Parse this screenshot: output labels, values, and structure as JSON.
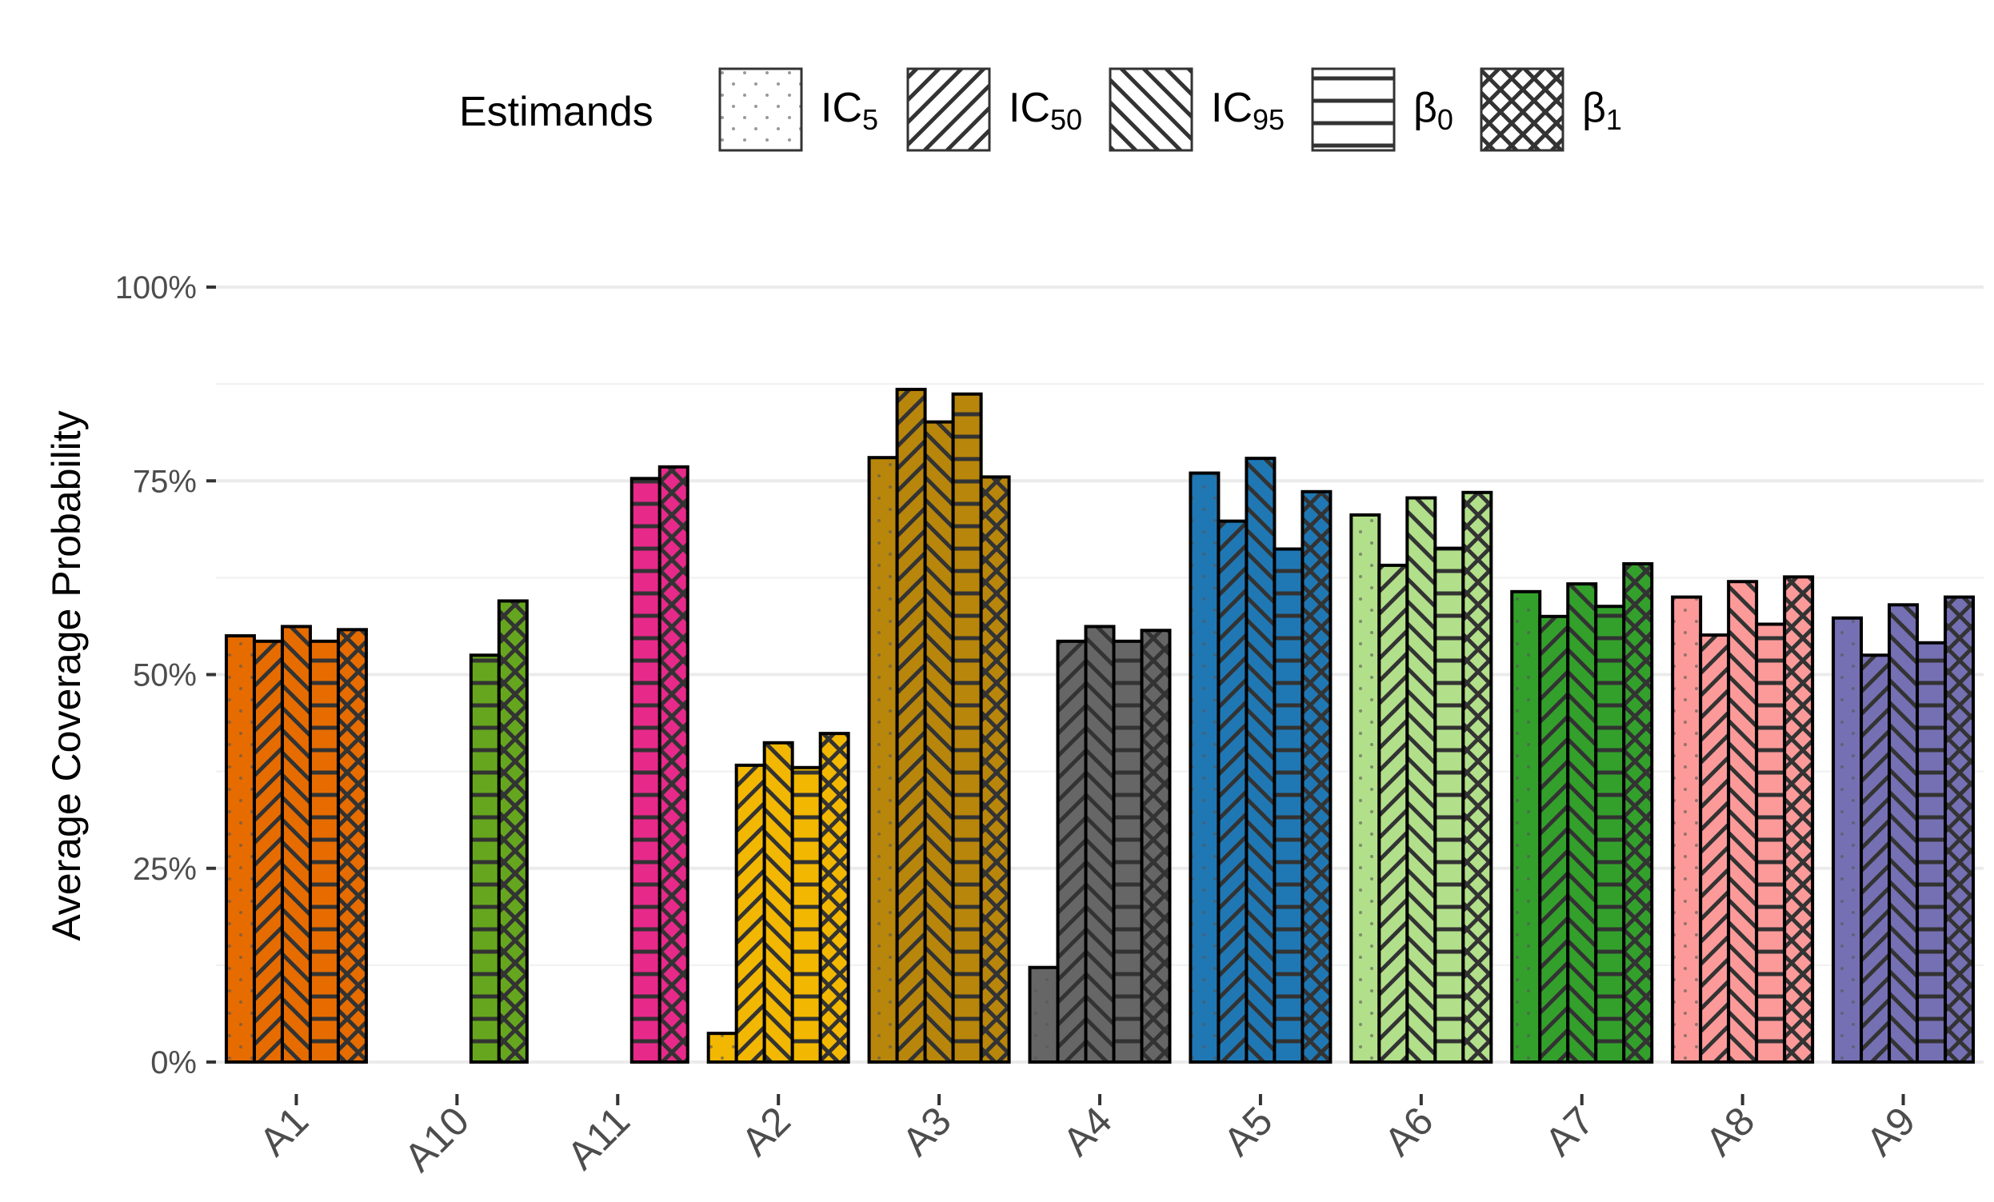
{
  "chart_data": {
    "type": "bar",
    "ylabel": "Average Coverage Probability",
    "xlabel": "",
    "ylim": [
      0,
      1
    ],
    "yticks": [
      "0%",
      "25%",
      "50%",
      "75%",
      "100%"
    ],
    "grid": true,
    "legend_position": "top",
    "legend_title": "Estimands",
    "categories": [
      "A1",
      "A10",
      "A11",
      "A2",
      "A3",
      "A4",
      "A5",
      "A6",
      "A7",
      "A8",
      "A9"
    ],
    "category_colors": [
      "#E66C00",
      "#66A61E",
      "#E7298A",
      "#F2B701",
      "#B8860B",
      "#666666",
      "#1F78B4",
      "#B2DF8A",
      "#33A02C",
      "#FB9A99",
      "#7570B3"
    ],
    "series": [
      {
        "name": "IC5",
        "name_main": "IC",
        "name_sub": "5",
        "pattern": "dots",
        "values": [
          0.55,
          0.0,
          0.0,
          0.037,
          0.78,
          0.122,
          0.76,
          0.706,
          0.607,
          0.6,
          0.573
        ]
      },
      {
        "name": "IC50",
        "name_main": "IC",
        "name_sub": "50",
        "pattern": "diag-forward",
        "values": [
          0.543,
          0.0,
          0.0,
          0.383,
          0.868,
          0.543,
          0.698,
          0.641,
          0.575,
          0.551,
          0.525
        ]
      },
      {
        "name": "IC95",
        "name_main": "IC",
        "name_sub": "95",
        "pattern": "diag-back",
        "values": [
          0.562,
          0.0,
          0.0,
          0.412,
          0.826,
          0.562,
          0.779,
          0.728,
          0.617,
          0.62,
          0.59
        ]
      },
      {
        "name": "β0",
        "name_main": "β",
        "name_sub": "0",
        "pattern": "horizontal",
        "values": [
          0.543,
          0.525,
          0.753,
          0.38,
          0.862,
          0.543,
          0.662,
          0.663,
          0.588,
          0.565,
          0.541
        ]
      },
      {
        "name": "β1",
        "name_main": "β",
        "name_sub": "1",
        "pattern": "crosshatch",
        "values": [
          0.558,
          0.595,
          0.768,
          0.424,
          0.755,
          0.557,
          0.736,
          0.735,
          0.643,
          0.626,
          0.6
        ]
      }
    ]
  }
}
